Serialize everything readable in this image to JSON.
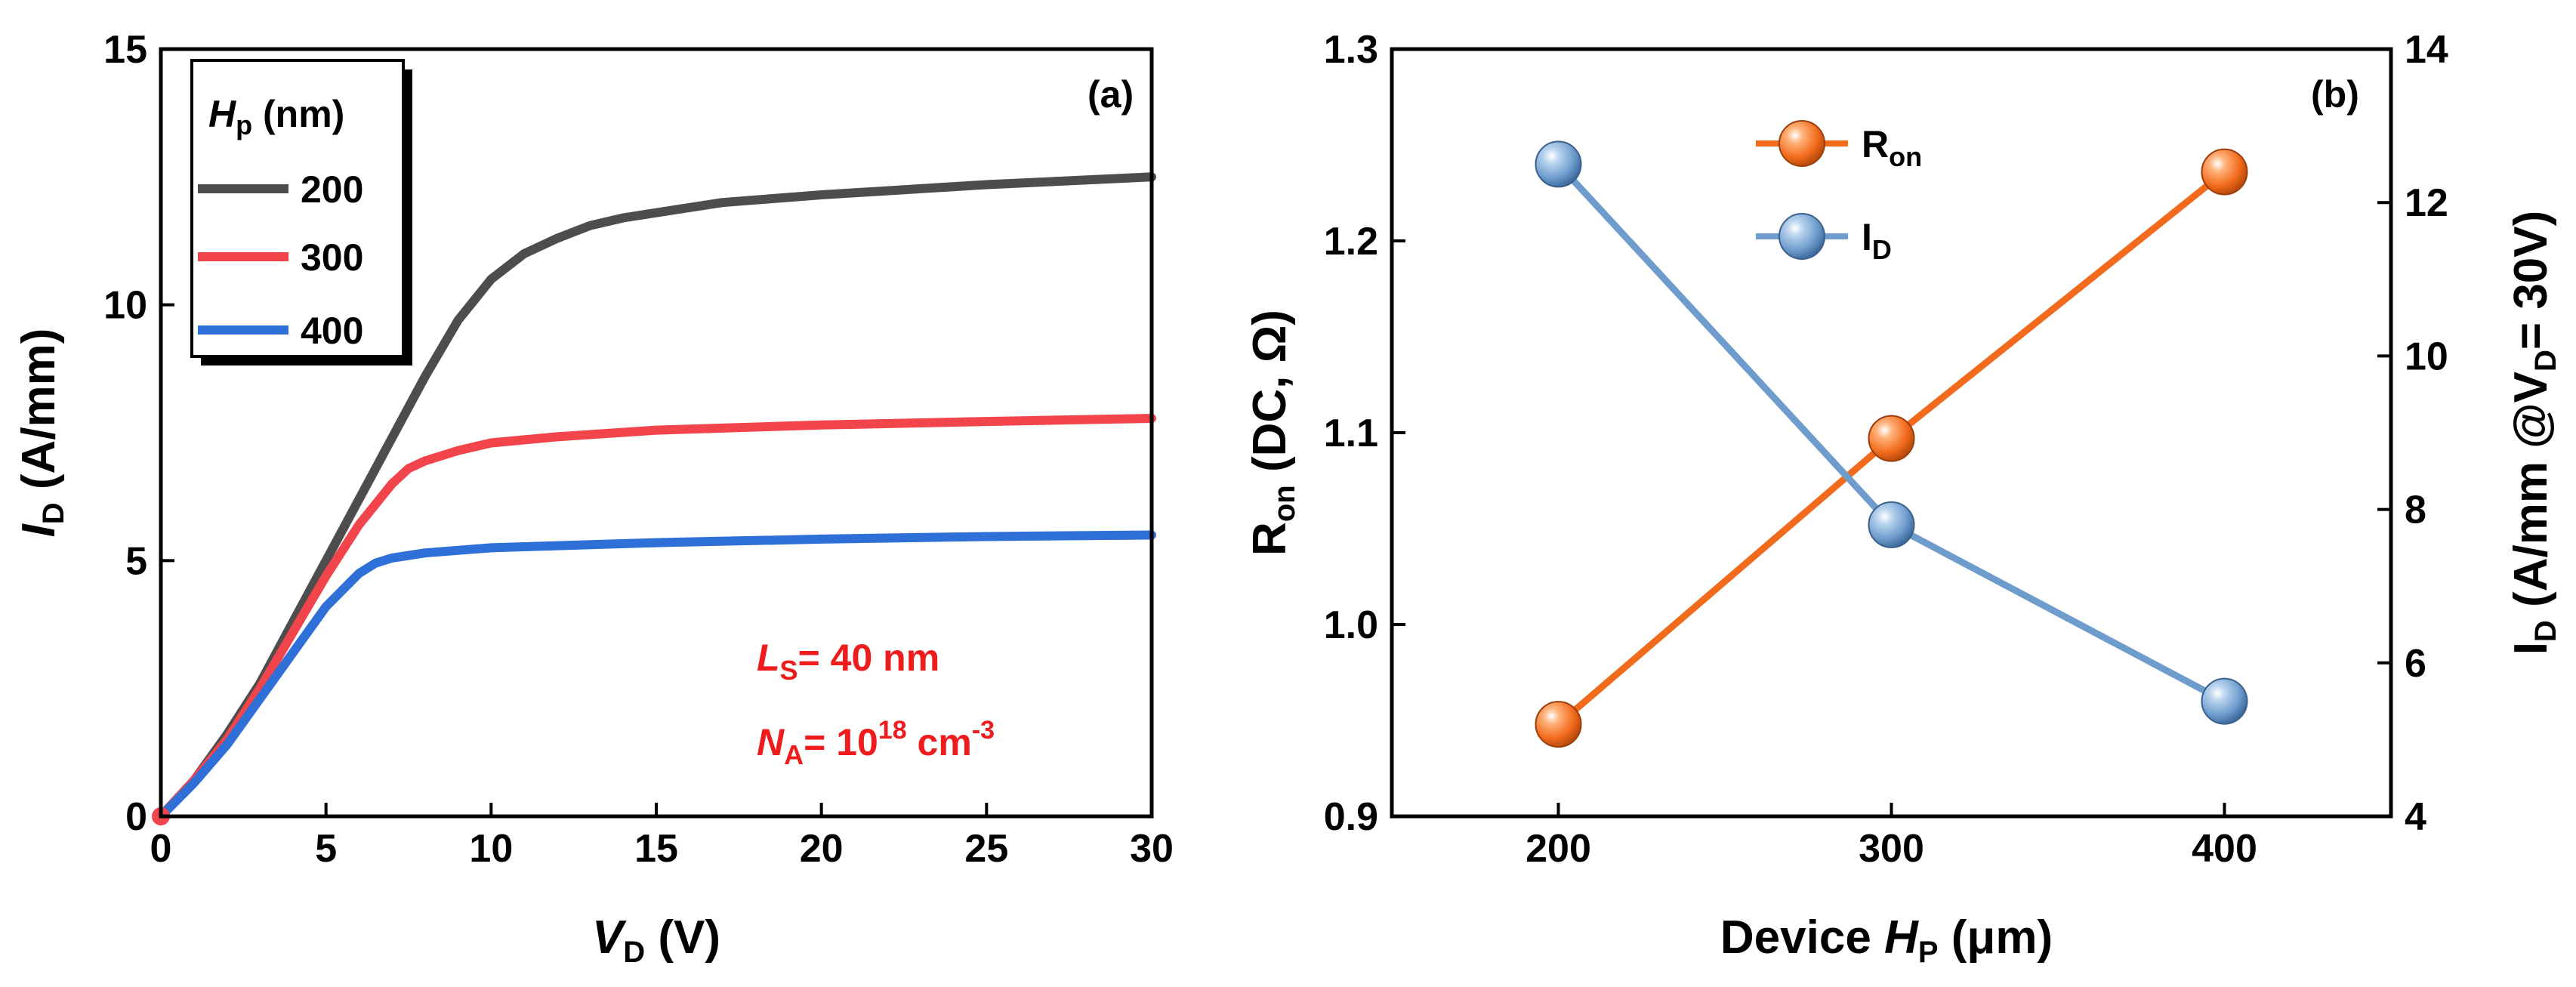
{
  "colors": {
    "c200": "#4d4d4d",
    "c300": "#f2444b",
    "c400": "#2f6fd8",
    "ron": "#f26b1d",
    "id": "#6e9ccd",
    "annotation": "#ee1c1c"
  },
  "chart_data": [
    {
      "type": "line",
      "panel_label": "(a)",
      "xlabel_main": "V",
      "xlabel_sub": "D",
      "xlabel_unit": " (V)",
      "ylabel_main": "I",
      "ylabel_sub": "D",
      "ylabel_unit": " (A/mm)",
      "xlim": [
        0,
        30
      ],
      "ylim": [
        0,
        15
      ],
      "xticks": [
        0,
        5,
        10,
        15,
        20,
        25,
        30
      ],
      "yticks": [
        0,
        5,
        10,
        15
      ],
      "legend": {
        "title_main": "H",
        "title_sub": "p",
        "title_unit": " (nm)",
        "location": "top-left"
      },
      "annotations": {
        "ls_main": "L",
        "ls_sub": "S",
        "ls_rest": "= 40 nm",
        "na_main": "N",
        "na_sub": "A",
        "na_rest": "= 10",
        "na_exp": "18",
        "na_unit": " cm",
        "na_unit_exp": "-3"
      },
      "series": [
        {
          "name": "200",
          "x": [
            0,
            1,
            2,
            3,
            4,
            5,
            6,
            7,
            8,
            9,
            10,
            11,
            12,
            13,
            14,
            15,
            17,
            20,
            25,
            30
          ],
          "y": [
            0,
            0.7,
            1.6,
            2.6,
            3.8,
            5.0,
            6.2,
            7.4,
            8.6,
            9.7,
            10.5,
            11.0,
            11.3,
            11.55,
            11.7,
            11.8,
            12.0,
            12.15,
            12.35,
            12.5
          ]
        },
        {
          "name": "300",
          "x": [
            0,
            1,
            2,
            3,
            4,
            5,
            6,
            7,
            7.5,
            8,
            9,
            10,
            12,
            15,
            20,
            25,
            30
          ],
          "y": [
            0,
            0.7,
            1.5,
            2.5,
            3.6,
            4.7,
            5.7,
            6.5,
            6.8,
            6.95,
            7.15,
            7.3,
            7.42,
            7.55,
            7.65,
            7.72,
            7.78
          ]
        },
        {
          "name": "400",
          "x": [
            0,
            1,
            2,
            3,
            4,
            5,
            6,
            6.5,
            7,
            8,
            10,
            15,
            20,
            25,
            30
          ],
          "y": [
            0,
            0.65,
            1.4,
            2.3,
            3.2,
            4.1,
            4.75,
            4.95,
            5.05,
            5.15,
            5.25,
            5.35,
            5.42,
            5.47,
            5.5
          ]
        }
      ]
    },
    {
      "type": "line",
      "panel_label": "(b)",
      "xlabel_main": "Device ",
      "xlabel_italic": "H",
      "xlabel_sub": "P",
      "xlabel_unit": " (μm)",
      "ylabel_left_main": "R",
      "ylabel_left_sub": "on",
      "ylabel_left_unit": " (DC, Ω)",
      "ylabel_right_main": "I",
      "ylabel_right_sub": "D",
      "ylabel_right_mid": " (A/mm @V",
      "ylabel_right_sub2": "D",
      "ylabel_right_end": "= 30V)",
      "xlim": [
        150,
        450
      ],
      "ylim_left": [
        0.9,
        1.3
      ],
      "ylim_right": [
        4,
        14
      ],
      "xticks": [
        200,
        300,
        400
      ],
      "yticks_left": [
        0.9,
        1.0,
        1.1,
        1.2,
        1.3
      ],
      "yticks_right": [
        4,
        6,
        8,
        10,
        12,
        14
      ],
      "legend": {
        "location": "top-center"
      },
      "categories": [
        200,
        300,
        400
      ],
      "series": [
        {
          "name_main": "R",
          "name_sub": "on",
          "axis": "left",
          "values": [
            0.948,
            1.097,
            1.236
          ]
        },
        {
          "name_main": "I",
          "name_sub": "D",
          "axis": "right",
          "values": [
            12.5,
            7.8,
            5.5
          ]
        }
      ]
    }
  ]
}
